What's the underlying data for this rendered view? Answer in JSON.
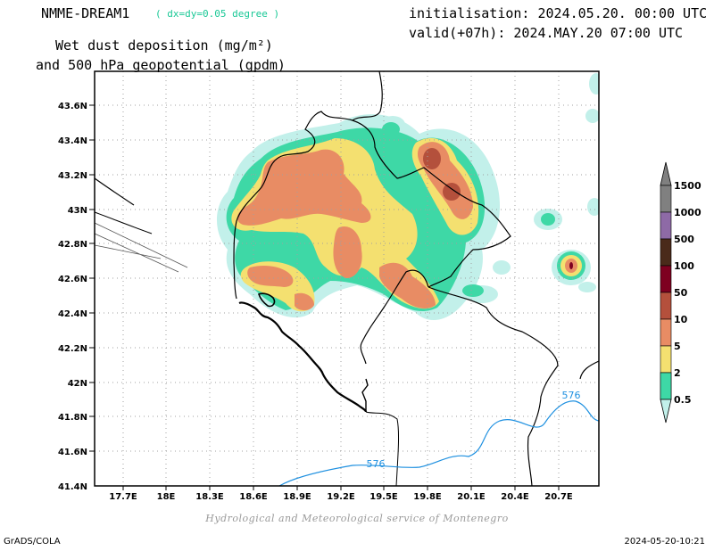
{
  "header": {
    "model": "NMME-DREAM1",
    "resolution": "( dx=dy=0.05 degree )",
    "variable_line1": "Wet dust deposition (mg/m²)",
    "variable_line2": "and 500 hPa geopotential (gpdm)",
    "init": "initialisation: 2024.05.20. 00:00 UTC",
    "valid": "valid(+07h): 2024.MAY.20 07:00 UTC"
  },
  "map": {
    "lon_labels": [
      "17.7E",
      "18E",
      "18.3E",
      "18.6E",
      "18.9E",
      "19.2E",
      "19.5E",
      "19.8E",
      "20.1E",
      "20.4E",
      "20.7E"
    ],
    "lat_labels": [
      "43.6N",
      "43.4N",
      "43.2N",
      "43N",
      "42.8N",
      "42.6N",
      "42.4N",
      "42.2N",
      "42N",
      "41.8N",
      "41.6N",
      "41.4N"
    ],
    "contour_label": "576",
    "contour_color": "#1e90e0"
  },
  "legend": {
    "items": [
      {
        "label": "1500",
        "color": "#808080"
      },
      {
        "label": "1000",
        "color": "#8e6aa6"
      },
      {
        "label": "500",
        "color": "#4a2a1a"
      },
      {
        "label": "100",
        "color": "#7e0020"
      },
      {
        "label": "50",
        "color": "#b4503c"
      },
      {
        "label": "10",
        "color": "#e88c64"
      },
      {
        "label": "5",
        "color": "#f4e070"
      },
      {
        "label": "2",
        "color": "#3ed8a6"
      },
      {
        "label": "0.5",
        "color": "#c2f0ea"
      }
    ]
  },
  "credit": "Hydrological and Meteorological service of Montenegro",
  "footer": {
    "left": "GrADS/COLA",
    "right": "2024-05-20-10:21"
  }
}
